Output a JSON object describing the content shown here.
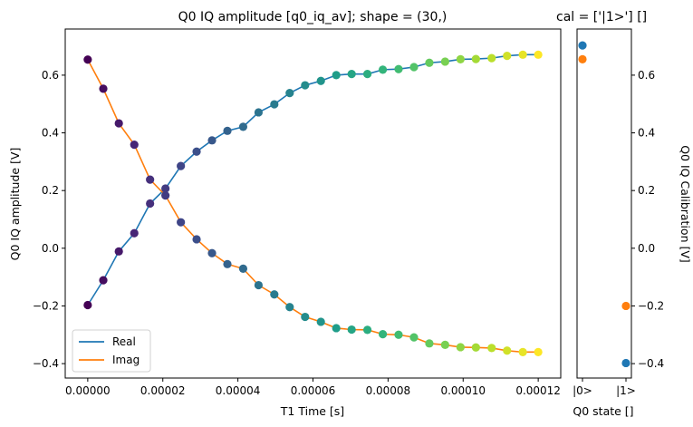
{
  "chart_data": [
    {
      "type": "line",
      "title": "Q0 IQ amplitude [q0_iq_av]; shape = (30,)",
      "xlabel": "T1 Time [s]",
      "ylabel": "Q0 IQ amplitude [V]",
      "xlim": [
        -6e-06,
        0.000126
      ],
      "ylim": [
        -0.45,
        0.76
      ],
      "xticks": [
        0,
        2e-05,
        4e-05,
        6e-05,
        8e-05,
        0.0001,
        0.00012
      ],
      "xtick_labels": [
        "0.00000",
        "0.00002",
        "0.00004",
        "0.00006",
        "0.00008",
        "0.00010",
        "0.00012"
      ],
      "yticks": [
        -0.4,
        -0.2,
        0.0,
        0.2,
        0.4,
        0.6
      ],
      "ytick_labels": [
        "−0.4",
        "−0.2",
        "0.0",
        "0.2",
        "0.4",
        "0.6"
      ],
      "grid": false,
      "legend": "lower-left",
      "x": [
        0,
        4.14e-06,
        8.28e-06,
        1.24e-05,
        1.66e-05,
        2.07e-05,
        2.48e-05,
        2.9e-05,
        3.31e-05,
        3.72e-05,
        4.14e-05,
        4.55e-05,
        4.97e-05,
        5.38e-05,
        5.79e-05,
        6.21e-05,
        6.62e-05,
        7.03e-05,
        7.45e-05,
        7.86e-05,
        8.28e-05,
        8.69e-05,
        9.1e-05,
        9.52e-05,
        9.93e-05,
        0.0001034,
        0.0001076,
        0.0001117,
        0.0001159,
        0.00012
      ],
      "series": [
        {
          "name": "Real",
          "color": "#1f77b4",
          "values": [
            -0.197,
            -0.111,
            -0.011,
            0.052,
            0.155,
            0.207,
            0.285,
            0.335,
            0.374,
            0.407,
            0.421,
            0.471,
            0.499,
            0.538,
            0.565,
            0.58,
            0.6,
            0.604,
            0.604,
            0.619,
            0.621,
            0.628,
            0.643,
            0.647,
            0.655,
            0.656,
            0.659,
            0.667,
            0.671,
            0.671
          ]
        },
        {
          "name": "Imag",
          "color": "#ff7f0e",
          "values": [
            0.654,
            0.553,
            0.433,
            0.359,
            0.238,
            0.183,
            0.09,
            0.031,
            -0.017,
            -0.055,
            -0.071,
            -0.128,
            -0.16,
            -0.204,
            -0.238,
            -0.255,
            -0.277,
            -0.282,
            -0.283,
            -0.298,
            -0.3,
            -0.309,
            -0.33,
            -0.335,
            -0.343,
            -0.344,
            -0.346,
            -0.355,
            -0.36,
            -0.36
          ]
        }
      ],
      "marker_colormap": "viridis"
    },
    {
      "type": "scatter",
      "title": "cal = ['|1>'] []",
      "xlabel": "Q0 state []",
      "ylabel": "Q0 IQ Calibration [V]",
      "categories": [
        "|0>",
        "|1>"
      ],
      "ylim": [
        -0.45,
        0.76
      ],
      "yticks": [
        -0.4,
        -0.2,
        0.0,
        0.2,
        0.4,
        0.6
      ],
      "ytick_labels": [
        "−0.4",
        "−0.2",
        "0.0",
        "0.2",
        "0.4",
        "0.6"
      ],
      "series": [
        {
          "color": "#1f77b4",
          "values": [
            0.703,
            -0.398
          ]
        },
        {
          "color": "#ff7f0e",
          "values": [
            0.655,
            -0.2
          ]
        }
      ]
    }
  ]
}
